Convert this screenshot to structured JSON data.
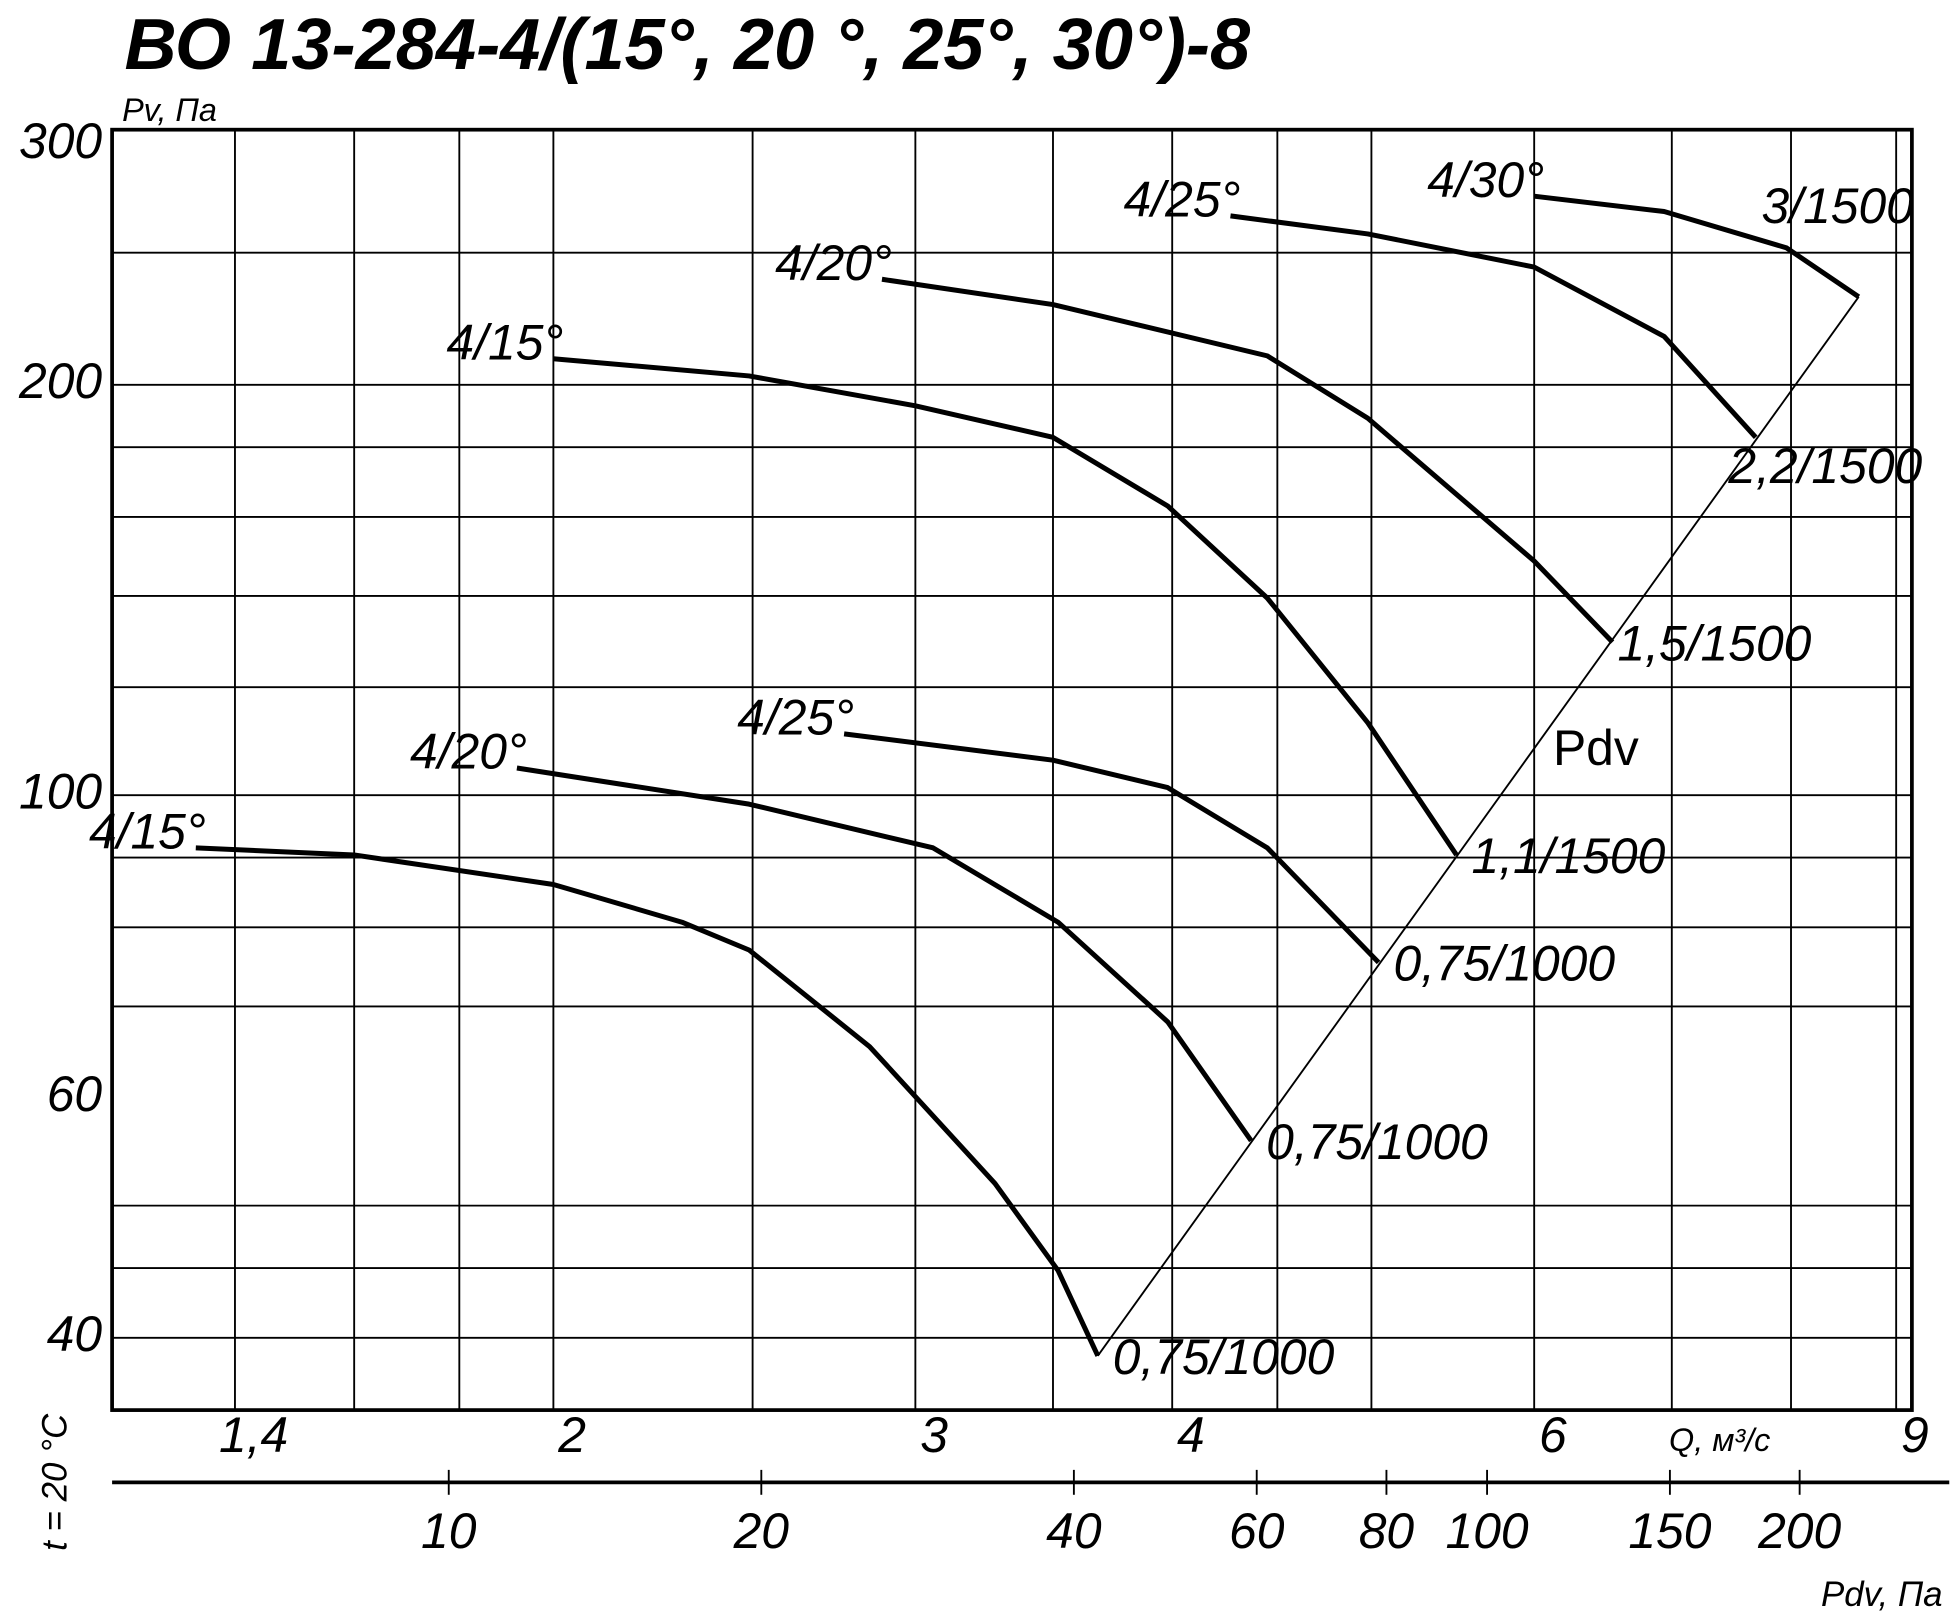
{
  "chart_data": {
    "type": "line",
    "title": "ВО 13-284-4/(15°, 20 °, 25°, 30°)-8",
    "y_label": "Pv, Па",
    "x_label": "Q, м³/с",
    "x2_label": "Pdv, Па",
    "side_label": "t = 20 °C",
    "log_x": true,
    "log_y": true,
    "log_x2": true,
    "xlim": [
      1.22,
      9.16
    ],
    "xticks": [
      {
        "value": 1.4,
        "label": "1,4"
      },
      2,
      3,
      4,
      6,
      9
    ],
    "xgrid": [
      1.4,
      1.6,
      1.8,
      2,
      2.5,
      3,
      3.5,
      4,
      4.5,
      5,
      6,
      7,
      8,
      9
    ],
    "ylim": [
      35.4,
      307.7
    ],
    "yticks": [
      300,
      200,
      100,
      60,
      40
    ],
    "ygrid": [
      250,
      200,
      180,
      160,
      140,
      120,
      100,
      90,
      80,
      70,
      50,
      45,
      40
    ],
    "x2lim": [
      4.74,
      278.7
    ],
    "x2ticks": [
      10,
      20,
      40,
      60,
      80,
      100,
      150,
      200
    ],
    "series": [
      {
        "name": "4/15°",
        "end_label": "0,75/1000",
        "color": "#000",
        "x": [
          1.34,
          1.6,
          2,
          2.31,
          2.49,
          2.85,
          3.28,
          3.52,
          3.68
        ],
        "values": [
          91.5,
          90.4,
          86,
          80.7,
          77,
          65.4,
          51.9,
          44.8,
          38.8
        ]
      },
      {
        "name": "4/20°",
        "end_label": "0,75/1000",
        "color": "#000",
        "x": [
          1.92,
          2.49,
          3.06,
          3.52,
          3.98,
          4.37
        ],
        "values": [
          104.7,
          98.5,
          91.5,
          80.7,
          68.2,
          55.8
        ]
      },
      {
        "name": "4/25°",
        "end_label": "0,75/1000",
        "color": "#000",
        "x": [
          2.77,
          3.5,
          3.98,
          4.45,
          5.04
        ],
        "values": [
          110.9,
          106.1,
          101.3,
          91.5,
          75.4
        ]
      },
      {
        "name": "4/15°",
        "end_label": "1,1/1500",
        "color": "#000",
        "x": [
          2,
          2.49,
          3,
          3.5,
          3.98,
          4.45,
          4.98,
          5.5
        ],
        "values": [
          209,
          203,
          193,
          183,
          163,
          139.5,
          113,
          90.4
        ]
      },
      {
        "name": "4/20°",
        "end_label": "1,5/1500",
        "color": "#000",
        "x": [
          2.89,
          3.5,
          4.45,
          4.98,
          6,
          6.55
        ],
        "values": [
          239,
          229,
          210,
          189,
          148.5,
          129.5
        ]
      },
      {
        "name": "4/25°",
        "end_label": "2,2/1500",
        "color": "#000",
        "x": [
          4.27,
          4.98,
          6,
          6.94,
          7.69
        ],
        "values": [
          266,
          258,
          244,
          217,
          183
        ]
      },
      {
        "name": "4/30°",
        "end_label": "3/1500",
        "color": "#000",
        "x": [
          6,
          6.94,
          7.96,
          8.63
        ],
        "values": [
          275,
          268,
          252,
          232
        ]
      }
    ],
    "pdv_line": {
      "name": "Pdv",
      "color": "#000",
      "x": [
        3.68,
        8.63
      ],
      "values": [
        38.8,
        232
      ]
    }
  }
}
